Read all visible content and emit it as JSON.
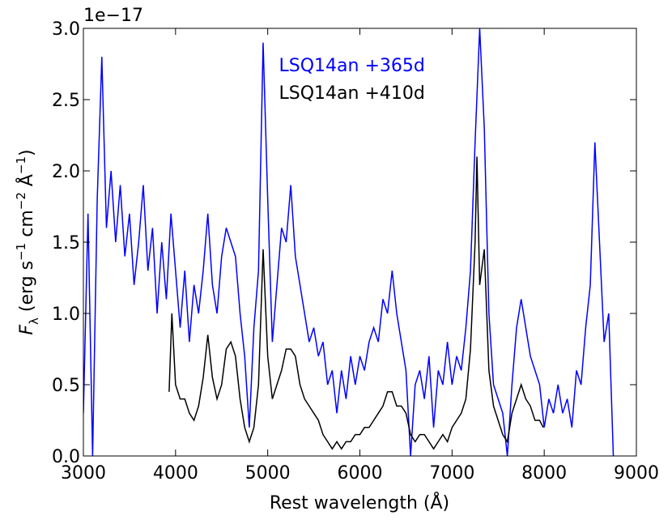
{
  "chart_data": {
    "type": "line",
    "xlabel": "Rest wavelength (Å)",
    "ylabel": [
      {
        "text": "F"
      },
      {
        "text": "λ",
        "shift": "sub"
      },
      {
        "text": "  (erg s"
      },
      {
        "text": "−1",
        "shift": "super"
      },
      {
        "text": " cm"
      },
      {
        "text": "−2",
        "shift": "super"
      },
      {
        "text": " Å"
      },
      {
        "text": "−1",
        "shift": "super"
      },
      {
        "text": ")"
      }
    ],
    "y_offset_label": "1e−17",
    "xlim": [
      3000,
      9000
    ],
    "xticks": [
      3000,
      4000,
      5000,
      6000,
      7000,
      8000,
      9000
    ],
    "ylim": [
      0,
      3
    ],
    "yticks": [
      {
        "value": 0,
        "label": "0.0"
      },
      0.5,
      {
        "value": 1,
        "label": "1.0"
      },
      1.5,
      {
        "value": 2,
        "label": "2.0"
      },
      2.5,
      {
        "value": 3,
        "label": "3.0"
      }
    ],
    "legend": "upper center",
    "series": [
      {
        "name": "LSQ14an +365d",
        "color": "#0000ff",
        "x": [
          3000,
          3050,
          3100,
          3150,
          3200,
          3250,
          3300,
          3350,
          3400,
          3450,
          3500,
          3550,
          3600,
          3650,
          3700,
          3750,
          3800,
          3850,
          3900,
          3950,
          4000,
          4050,
          4100,
          4150,
          4200,
          4250,
          4300,
          4350,
          4400,
          4450,
          4500,
          4550,
          4600,
          4650,
          4700,
          4750,
          4800,
          4850,
          4900,
          4950,
          5000,
          5050,
          5100,
          5150,
          5200,
          5250,
          5300,
          5350,
          5400,
          5450,
          5500,
          5550,
          5600,
          5650,
          5700,
          5750,
          5800,
          5850,
          5900,
          5950,
          6000,
          6050,
          6100,
          6150,
          6200,
          6250,
          6300,
          6350,
          6400,
          6450,
          6500,
          6550,
          6600,
          6650,
          6700,
          6750,
          6800,
          6850,
          6900,
          6950,
          7000,
          7050,
          7100,
          7150,
          7200,
          7250,
          7300,
          7350,
          7400,
          7450,
          7500,
          7550,
          7600,
          7650,
          7700,
          7750,
          7800,
          7850,
          7900,
          7950,
          8000,
          8050,
          8100,
          8150,
          8200,
          8250,
          8300,
          8350,
          8400,
          8450,
          8500,
          8550,
          8600,
          8650,
          8700,
          8750
        ],
        "values": [
          0.3,
          1.7,
          0.0,
          1.8,
          2.8,
          1.6,
          2.0,
          1.5,
          1.9,
          1.4,
          1.7,
          1.2,
          1.5,
          1.9,
          1.3,
          1.6,
          1.0,
          1.5,
          1.1,
          1.7,
          1.3,
          0.9,
          1.3,
          0.8,
          1.2,
          1.0,
          1.3,
          1.7,
          1.2,
          1.0,
          1.4,
          1.6,
          1.5,
          1.4,
          1.0,
          0.7,
          0.2,
          0.9,
          1.3,
          2.9,
          1.8,
          0.8,
          1.2,
          1.6,
          1.5,
          1.9,
          1.4,
          1.2,
          1.0,
          0.8,
          0.9,
          0.7,
          0.8,
          0.5,
          0.6,
          0.3,
          0.6,
          0.4,
          0.7,
          0.5,
          0.7,
          0.6,
          0.8,
          0.9,
          0.8,
          1.1,
          1.0,
          1.3,
          1.0,
          0.8,
          0.6,
          0.0,
          0.5,
          0.6,
          0.4,
          0.7,
          0.2,
          0.6,
          0.5,
          0.8,
          0.5,
          0.7,
          0.6,
          0.9,
          1.3,
          2.2,
          3.0,
          2.3,
          1.0,
          0.5,
          0.4,
          0.3,
          0.0,
          0.5,
          0.9,
          1.1,
          0.9,
          0.7,
          0.6,
          0.5,
          0.2,
          0.4,
          0.3,
          0.5,
          0.3,
          0.4,
          0.2,
          0.6,
          0.5,
          0.9,
          1.2,
          2.2,
          1.5,
          0.8,
          1.0,
          0.0
        ]
      },
      {
        "name": "LSQ14an +410d",
        "color": "#000000",
        "x": [
          3930,
          3960,
          4000,
          4050,
          4100,
          4150,
          4200,
          4250,
          4300,
          4350,
          4400,
          4450,
          4500,
          4550,
          4600,
          4650,
          4700,
          4750,
          4800,
          4850,
          4900,
          4950,
          5000,
          5050,
          5100,
          5150,
          5200,
          5250,
          5300,
          5350,
          5400,
          5450,
          5500,
          5550,
          5600,
          5650,
          5700,
          5750,
          5800,
          5850,
          5900,
          5950,
          6000,
          6050,
          6100,
          6150,
          6200,
          6250,
          6300,
          6350,
          6400,
          6450,
          6500,
          6550,
          6600,
          6650,
          6700,
          6750,
          6800,
          6850,
          6900,
          6950,
          7000,
          7050,
          7100,
          7150,
          7200,
          7250,
          7270,
          7300,
          7350,
          7400,
          7450,
          7500,
          7550,
          7600,
          7650,
          7700,
          7750,
          7800,
          7850,
          7900,
          7950,
          7990
        ],
        "values": [
          0.45,
          1.0,
          0.5,
          0.4,
          0.4,
          0.3,
          0.25,
          0.35,
          0.55,
          0.85,
          0.55,
          0.4,
          0.5,
          0.75,
          0.8,
          0.7,
          0.4,
          0.2,
          0.1,
          0.2,
          0.5,
          1.45,
          0.7,
          0.4,
          0.5,
          0.6,
          0.75,
          0.75,
          0.7,
          0.5,
          0.4,
          0.35,
          0.3,
          0.25,
          0.15,
          0.1,
          0.05,
          0.1,
          0.05,
          0.1,
          0.1,
          0.15,
          0.15,
          0.2,
          0.2,
          0.25,
          0.3,
          0.35,
          0.45,
          0.45,
          0.35,
          0.35,
          0.3,
          0.15,
          0.1,
          0.15,
          0.15,
          0.1,
          0.05,
          0.1,
          0.15,
          0.1,
          0.2,
          0.25,
          0.3,
          0.4,
          0.75,
          1.5,
          2.1,
          1.2,
          1.45,
          0.6,
          0.35,
          0.25,
          0.15,
          0.1,
          0.3,
          0.4,
          0.5,
          0.4,
          0.35,
          0.25,
          0.25,
          0.2
        ]
      }
    ]
  }
}
